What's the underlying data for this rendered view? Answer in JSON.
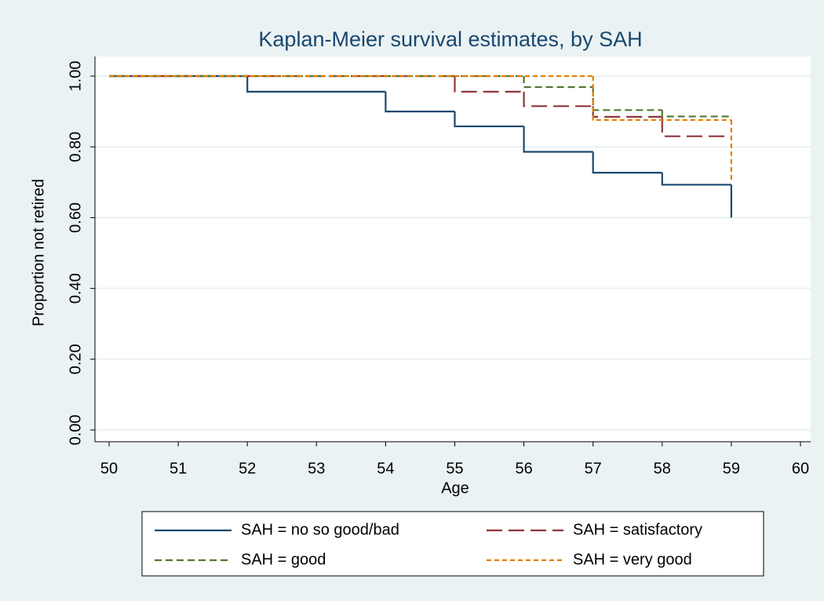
{
  "chart_data": {
    "type": "step",
    "title": "Kaplan-Meier survival estimates, by SAH",
    "x_label": "Age",
    "y_label": "Proportion not retired",
    "xlim": [
      50,
      60
    ],
    "xticks": [
      50,
      51,
      52,
      53,
      54,
      55,
      56,
      57,
      58,
      59,
      60
    ],
    "ylim": [
      0,
      1
    ],
    "yticks": [
      {
        "value": 0,
        "label": "0.00"
      },
      {
        "value": 0.2,
        "label": "0.20"
      },
      {
        "value": 0.4,
        "label": "0.40"
      },
      {
        "value": 0.6,
        "label": "0.60"
      },
      {
        "value": 0.8,
        "label": "0.80"
      },
      {
        "value": 1,
        "label": "1.00"
      }
    ],
    "grid": true,
    "legend": "bottom",
    "series": [
      {
        "name": "SAH = no so good/bad",
        "color": "#1a476f",
        "dash": "none",
        "x": [
          50,
          52,
          54,
          55,
          56,
          57,
          58,
          59
        ],
        "values": [
          1,
          0.956,
          0.9,
          0.858,
          0.786,
          0.727,
          0.693,
          0.6
        ]
      },
      {
        "name": "SAH = satisfactory",
        "color": "#90353b",
        "dash": "20 8",
        "x": [
          50,
          55,
          56,
          57,
          58,
          59
        ],
        "values": [
          1,
          0.956,
          0.915,
          0.885,
          0.83,
          0.83
        ]
      },
      {
        "name": "SAH = good",
        "color": "#55752f",
        "dash": "9 5",
        "x": [
          50,
          56,
          57,
          58,
          59
        ],
        "values": [
          1,
          0.969,
          0.904,
          0.886,
          0.886
        ]
      },
      {
        "name": "SAH = very good",
        "color": "#e37e00",
        "dash": "6 4",
        "x": [
          50,
          57,
          59
        ],
        "values": [
          1,
          0.876,
          0.7
        ]
      }
    ]
  }
}
